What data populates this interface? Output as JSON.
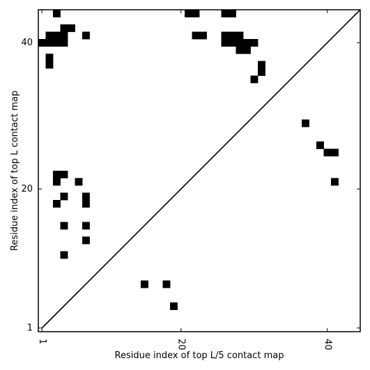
{
  "chart_data": {
    "type": "heatmap",
    "xlabel": "Residue index of top L/5 contact map",
    "ylabel": "Residue index of top L contact map",
    "xlim": [
      0.5,
      44.5
    ],
    "ylim": [
      0.5,
      44.5
    ],
    "x_ticks": [
      {
        "value": 1,
        "label": "1"
      },
      {
        "value": 20,
        "label": "20"
      },
      {
        "value": 40,
        "label": "40"
      }
    ],
    "y_ticks": [
      {
        "value": 1,
        "label": "1"
      },
      {
        "value": 20,
        "label": "20"
      },
      {
        "value": 40,
        "label": "40"
      }
    ],
    "x_tick_label_rotation": 90,
    "diagonal": true,
    "cell_color": "#000000",
    "background_color": "#ffffff",
    "contacts_upper_left": [
      [
        3,
        44
      ],
      [
        21,
        44
      ],
      [
        22,
        44
      ],
      [
        26,
        44
      ],
      [
        27,
        44
      ],
      [
        4,
        42
      ],
      [
        5,
        42
      ],
      [
        2,
        41
      ],
      [
        3,
        41
      ],
      [
        4,
        41
      ],
      [
        7,
        41
      ],
      [
        22,
        41
      ],
      [
        23,
        41
      ],
      [
        26,
        41
      ],
      [
        27,
        41
      ],
      [
        28,
        41
      ],
      [
        1,
        40
      ],
      [
        2,
        40
      ],
      [
        3,
        40
      ],
      [
        4,
        40
      ],
      [
        26,
        40
      ],
      [
        27,
        40
      ],
      [
        28,
        40
      ],
      [
        29,
        40
      ],
      [
        30,
        40
      ],
      [
        28,
        39
      ],
      [
        29,
        39
      ],
      [
        2,
        38
      ],
      [
        2,
        37
      ],
      [
        31,
        37
      ],
      [
        31,
        36
      ],
      [
        30,
        35
      ],
      [
        3,
        22
      ],
      [
        4,
        22
      ],
      [
        3,
        21
      ],
      [
        6,
        21
      ],
      [
        4,
        19
      ],
      [
        7,
        19
      ],
      [
        3,
        18
      ],
      [
        7,
        18
      ],
      [
        4,
        15
      ],
      [
        7,
        15
      ],
      [
        7,
        13
      ],
      [
        4,
        11
      ]
    ],
    "contacts_lower_right": [
      [
        15,
        7
      ],
      [
        18,
        7
      ],
      [
        19,
        4
      ],
      [
        37,
        29
      ],
      [
        39,
        26
      ],
      [
        40,
        25
      ],
      [
        41,
        25
      ],
      [
        41,
        21
      ]
    ]
  }
}
